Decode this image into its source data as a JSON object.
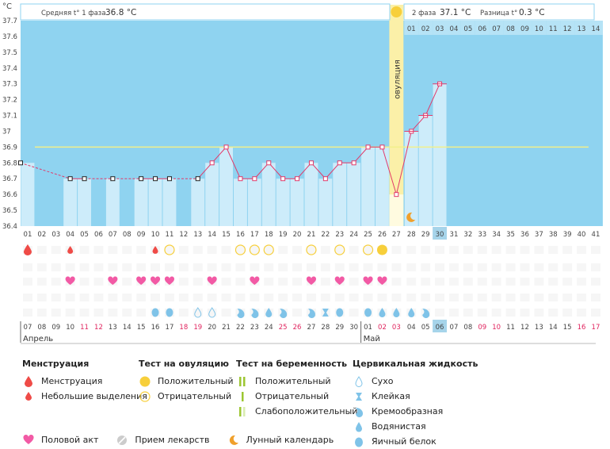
{
  "chart_data": {
    "type": "line",
    "unit": "°C",
    "ylim": [
      36.4,
      37.7
    ],
    "yticks": [
      "37.7",
      "37.6",
      "37.5",
      "37.4",
      "37.3",
      "37.2",
      "37.1",
      "37",
      "36.9",
      "36.8",
      "36.7",
      "36.6",
      "36.5",
      "36.4"
    ],
    "cycle_days": [
      "01",
      "02",
      "03",
      "04",
      "05",
      "06",
      "07",
      "08",
      "09",
      "10",
      "11",
      "12",
      "13",
      "14",
      "15",
      "16",
      "17",
      "18",
      "19",
      "20",
      "21",
      "22",
      "23",
      "24",
      "25",
      "26",
      "27",
      "28",
      "29",
      "30",
      "31",
      "32",
      "33",
      "34",
      "35",
      "36",
      "37",
      "38",
      "39",
      "40",
      "41"
    ],
    "temperatures": [
      36.8,
      null,
      null,
      36.7,
      36.7,
      null,
      36.7,
      null,
      36.7,
      36.7,
      36.7,
      null,
      36.7,
      36.8,
      36.9,
      36.7,
      36.7,
      36.8,
      36.7,
      36.7,
      36.8,
      36.7,
      36.8,
      36.8,
      36.9,
      36.9,
      36.6,
      37.0,
      37.1,
      37.3
    ],
    "current_day": "30",
    "coverline": 36.9,
    "ovulation_day": "27",
    "ovulation_label": "овуляция",
    "phase1_label": "Средняя t° 1 фаза",
    "phase1_value": "36.8 °C",
    "phase2_label": "2 фаза",
    "phase2_value": "37.1 °C",
    "diff_label": "Разница t°",
    "diff_value": "0.3 °C",
    "phase2_days": [
      "01",
      "02",
      "03",
      "04",
      "05",
      "06",
      "07",
      "08",
      "09",
      "10",
      "11",
      "12",
      "13",
      "14"
    ],
    "calendar_dates": [
      "07",
      "08",
      "09",
      "10",
      "11",
      "12",
      "13",
      "14",
      "15",
      "16",
      "17",
      "18",
      "19",
      "20",
      "21",
      "22",
      "23",
      "24",
      "25",
      "26",
      "27",
      "28",
      "29",
      "30",
      "01",
      "02",
      "03",
      "04",
      "05",
      "06",
      "07",
      "08",
      "09",
      "10",
      "11",
      "12",
      "13",
      "14",
      "15",
      "16",
      "17"
    ],
    "weekend_indices": [
      4,
      5,
      11,
      12,
      18,
      19,
      25,
      26,
      32,
      33,
      39,
      40
    ],
    "months": [
      {
        "label": "Апрель",
        "start": 0
      },
      {
        "label": "Май",
        "start": 24
      }
    ],
    "menstruation": [
      {
        "day": 0,
        "kind": "heavy"
      },
      {
        "day": 3,
        "kind": "light"
      },
      {
        "day": 9,
        "kind": "light"
      }
    ],
    "ovulation_tests": [
      {
        "day": 10,
        "result": "negative"
      },
      {
        "day": 15,
        "result": "negative"
      },
      {
        "day": 16,
        "result": "negative"
      },
      {
        "day": 17,
        "result": "negative"
      },
      {
        "day": 20,
        "result": "negative"
      },
      {
        "day": 22,
        "result": "negative"
      },
      {
        "day": 24,
        "result": "negative"
      },
      {
        "day": 25,
        "result": "positive"
      }
    ],
    "intercourse": [
      3,
      6,
      8,
      9,
      10,
      13,
      16,
      20,
      22,
      24,
      25
    ],
    "cervical_fluid": [
      {
        "day": 9,
        "kind": "egg"
      },
      {
        "day": 10,
        "kind": "egg"
      },
      {
        "day": 12,
        "kind": "dry"
      },
      {
        "day": 13,
        "kind": "dry"
      },
      {
        "day": 15,
        "kind": "creamy"
      },
      {
        "day": 16,
        "kind": "creamy"
      },
      {
        "day": 17,
        "kind": "watery"
      },
      {
        "day": 18,
        "kind": "creamy"
      },
      {
        "day": 20,
        "kind": "creamy"
      },
      {
        "day": 21,
        "kind": "sticky"
      },
      {
        "day": 22,
        "kind": "egg"
      },
      {
        "day": 24,
        "kind": "egg"
      },
      {
        "day": 25,
        "kind": "watery"
      },
      {
        "day": 26,
        "kind": "watery"
      },
      {
        "day": 27,
        "kind": "watery"
      },
      {
        "day": 28,
        "kind": "creamy"
      }
    ],
    "moon_day": 27,
    "colors": {
      "bg": "#8fd3f0",
      "bar": "#cdecfa",
      "line": "#e23a6a",
      "coverline": "#f2f08a",
      "ovulation": "#fbf0a8",
      "current": "#a6d4ea",
      "drop": "#ef4b47",
      "heart": "#f25aa5",
      "fluid": "#7fc3e8",
      "yellow": "#f7cf3b"
    }
  },
  "legend": {
    "menstruation_title": "Менструация",
    "menstruation_heavy": "Менструация",
    "menstruation_light": "Небольшие выделения",
    "ovtest_title": "Тест на овуляцию",
    "ovtest_pos": "Положительный",
    "ovtest_neg": "Отрицательный",
    "pregtest_title": "Тест на беременность",
    "pregtest_pos": "Положительный",
    "pregtest_neg": "Отрицательный",
    "pregtest_weak": "Слабоположительный",
    "fluid_title": "Цервикальная жидкость",
    "fluid_dry": "Сухо",
    "fluid_sticky": "Клейкая",
    "fluid_creamy": "Кремообразная",
    "fluid_watery": "Водянистая",
    "fluid_egg": "Яичный белок",
    "intercourse": "Половой акт",
    "medicine": "Прием лекарств",
    "moon": "Лунный календарь"
  }
}
